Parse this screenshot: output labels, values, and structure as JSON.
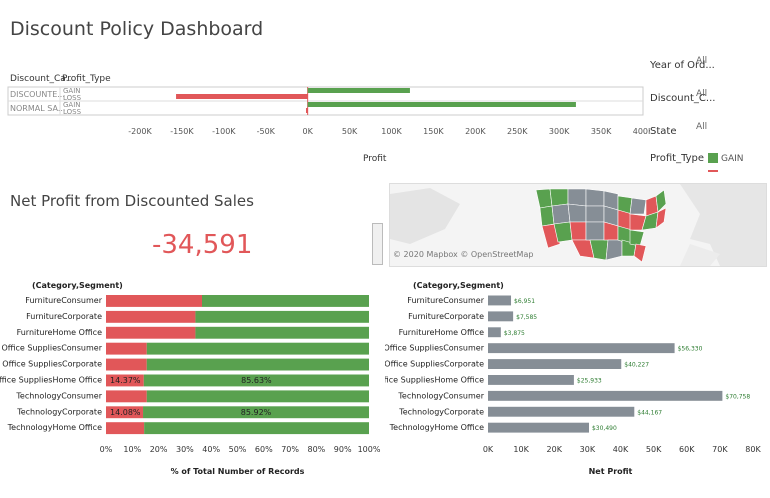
{
  "dashboard": {
    "title": "Discount Policy Dashboard",
    "subtitle": "Net Profit from Discounted Sales",
    "kpi_value": "-34,591",
    "map_credit": "© 2020 Mapbox © OpenStreetMap"
  },
  "filters": [
    {
      "label": "Year of Ord...",
      "value": "All"
    },
    {
      "label": "Discount_C...",
      "value": "All"
    },
    {
      "label": "State",
      "value": "All"
    }
  ],
  "legend": {
    "title": "Profit_Type",
    "items": [
      {
        "label": "GAIN",
        "color": "#59a14f"
      },
      {
        "label": "",
        "color": "#e15759"
      }
    ]
  },
  "colors": {
    "gain": "#59a14f",
    "loss": "#e15759",
    "neutral": "#868e96"
  },
  "chart_data": [
    {
      "type": "bar",
      "orientation": "horizontal",
      "headers": [
        "Discount_Ca...",
        "Profit_Type"
      ],
      "xlabel": "Profit",
      "xlim": [
        -200000,
        400000
      ],
      "xticks": [
        "-200K",
        "-150K",
        "-100K",
        "-50K",
        "0K",
        "50K",
        "100K",
        "150K",
        "200K",
        "250K",
        "300K",
        "350K",
        "400K"
      ],
      "rows": [
        {
          "category": "DISCOUNTE...",
          "types": [
            "GAIN",
            "LOSS"
          ],
          "gain": 122000,
          "loss": -157000
        },
        {
          "category": "NORMAL SA...",
          "types": [
            "GAIN",
            "LOSS"
          ],
          "gain": 320000,
          "loss": -2000
        }
      ]
    },
    {
      "type": "bar",
      "orientation": "horizontal",
      "stacked": true,
      "header": "(Category,Segment)",
      "xlabel": "% of Total Number of Records",
      "xlim": [
        0,
        100
      ],
      "xticks": [
        "0%",
        "10%",
        "20%",
        "30%",
        "40%",
        "50%",
        "60%",
        "70%",
        "80%",
        "90%",
        "100%"
      ],
      "categories": [
        "FurnitureConsumer",
        "FurnitureCorporate",
        "FurnitureHome Office",
        "Office SuppliesConsumer",
        "Office SuppliesCorporate",
        "Office SuppliesHome Office",
        "TechnologyConsumer",
        "TechnologyCorporate",
        "TechnologyHome Office"
      ],
      "series": [
        {
          "values": [
            36.5,
            34,
            34,
            15.5,
            15.5,
            14.37,
            15.5,
            14.08,
            14.5
          ],
          "color": "#e15759"
        },
        {
          "values": [
            63.5,
            66,
            66,
            84.5,
            84.5,
            85.63,
            84.5,
            85.92,
            85.5
          ],
          "color": "#59a14f"
        }
      ],
      "data_labels": [
        {
          "category": "Office SuppliesHome Office",
          "loss": "14.37%",
          "gain": "85.63%"
        },
        {
          "category": "TechnologyCorporate",
          "loss": "14.08%",
          "gain": "85.92%"
        }
      ]
    },
    {
      "type": "bar",
      "orientation": "horizontal",
      "header": "(Category,Segment)",
      "xlabel": "Net Profit",
      "xlim": [
        0,
        80000
      ],
      "xticks": [
        "0K",
        "10K",
        "20K",
        "30K",
        "40K",
        "50K",
        "60K",
        "70K",
        "80K"
      ],
      "categories": [
        "FurnitureConsumer",
        "FurnitureCorporate",
        "FurnitureHome Office",
        "Office SuppliesConsumer",
        "Office SuppliesCorporate",
        "Office SuppliesHome Office",
        "TechnologyConsumer",
        "TechnologyCorporate",
        "TechnologyHome Office"
      ],
      "values": [
        6951,
        7585,
        3875,
        56330,
        40227,
        25933,
        70758,
        44167,
        30490
      ],
      "value_labels": [
        "$6,951",
        "$7,585",
        "$3,875",
        "$56,330",
        "$40,227",
        "$25,933",
        "$70,758",
        "$44,167",
        "$30,490"
      ]
    }
  ]
}
